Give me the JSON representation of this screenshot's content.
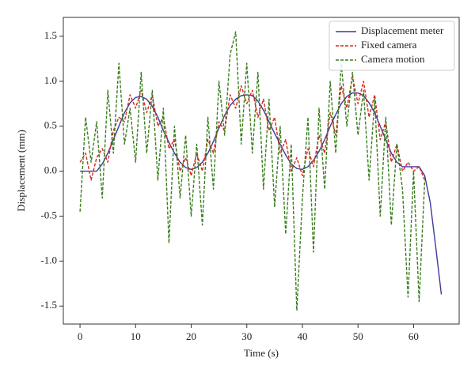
{
  "chart_data": {
    "type": "line",
    "xlabel": "Time (s)",
    "ylabel": "Displacement (mm)",
    "x": [
      0,
      1,
      2,
      3,
      4,
      5,
      6,
      7,
      8,
      9,
      10,
      11,
      12,
      13,
      14,
      15,
      16,
      17,
      18,
      19,
      20,
      21,
      22,
      23,
      24,
      25,
      26,
      27,
      28,
      29,
      30,
      31,
      32,
      33,
      34,
      35,
      36,
      37,
      38,
      39,
      40,
      41,
      42,
      43,
      44,
      45,
      46,
      47,
      48,
      49,
      50,
      51,
      52,
      53,
      54,
      55,
      56,
      57,
      58,
      59,
      60,
      61,
      62,
      63,
      64,
      65
    ],
    "series": [
      {
        "name": "Displacement meter",
        "color": "#3b3b9c",
        "dash": false,
        "values": [
          0,
          0,
          0,
          0,
          0.08,
          0.2,
          0.35,
          0.5,
          0.65,
          0.76,
          0.82,
          0.83,
          0.8,
          0.72,
          0.6,
          0.45,
          0.32,
          0.2,
          0.1,
          0.04,
          0.02,
          0.04,
          0.1,
          0.2,
          0.33,
          0.48,
          0.62,
          0.73,
          0.8,
          0.84,
          0.85,
          0.84,
          0.78,
          0.68,
          0.55,
          0.42,
          0.3,
          0.18,
          0.08,
          0.03,
          0.02,
          0.05,
          0.12,
          0.22,
          0.35,
          0.5,
          0.63,
          0.75,
          0.83,
          0.87,
          0.87,
          0.84,
          0.76,
          0.65,
          0.5,
          0.35,
          0.2,
          0.1,
          0.05,
          0.05,
          0.05,
          0.05,
          -0.05,
          -0.35,
          -0.85,
          -1.37
        ]
      },
      {
        "name": "Fixed camera",
        "color": "#d42a1e",
        "dash": true,
        "values": [
          0.1,
          0.2,
          -0.1,
          0.15,
          0.25,
          0.1,
          0.45,
          0.6,
          0.55,
          0.85,
          0.7,
          0.9,
          0.65,
          0.85,
          0.5,
          0.6,
          0.25,
          0.35,
          0.0,
          0.15,
          -0.05,
          0.2,
          0.0,
          0.35,
          0.2,
          0.55,
          0.45,
          0.85,
          0.7,
          0.95,
          0.75,
          0.9,
          0.6,
          0.8,
          0.45,
          0.6,
          0.2,
          0.35,
          0.0,
          0.15,
          -0.05,
          0.25,
          0.05,
          0.4,
          0.2,
          0.65,
          0.4,
          0.95,
          0.7,
          1.05,
          0.75,
          1.0,
          0.6,
          0.85,
          0.35,
          0.55,
          0.1,
          0.3,
          0.0,
          0.1,
          0.0,
          0.05,
          -0.1,
          null,
          null,
          null
        ]
      },
      {
        "name": "Camera motion",
        "color": "#3a7d1e",
        "dash": true,
        "values": [
          -0.45,
          0.6,
          0.1,
          0.55,
          -0.3,
          0.9,
          0.2,
          1.2,
          0.3,
          0.7,
          0.1,
          1.1,
          0.2,
          0.9,
          -0.1,
          0.7,
          -0.8,
          0.5,
          -0.3,
          0.4,
          -0.5,
          0.3,
          -0.6,
          0.6,
          -0.2,
          1.0,
          0.4,
          1.3,
          1.55,
          0.3,
          1.2,
          0.2,
          1.1,
          -0.2,
          0.8,
          -0.4,
          0.5,
          -0.7,
          0.3,
          -1.55,
          -0.3,
          0.6,
          -0.9,
          0.7,
          -0.2,
          1.0,
          0.2,
          1.2,
          0.5,
          1.1,
          0.4,
          0.9,
          -0.1,
          0.8,
          -0.5,
          0.6,
          -0.6,
          0.3,
          -0.2,
          -1.4,
          0.0,
          -1.45,
          -0.1,
          null,
          null,
          null
        ]
      }
    ],
    "xlim": [
      -3,
      68.2
    ],
    "ylim": [
      -1.7,
      1.71
    ],
    "xticks": [
      0,
      10,
      20,
      30,
      40,
      50,
      60
    ],
    "yticks": [
      -1.5,
      {
        "value": -1.0,
        "label": "-1.0"
      },
      -0.5,
      {
        "value": 0.0,
        "label": "0.0"
      },
      0.5,
      {
        "value": 1.0,
        "label": "1.0"
      },
      1.5
    ],
    "legend": "upper right",
    "grid": false
  }
}
